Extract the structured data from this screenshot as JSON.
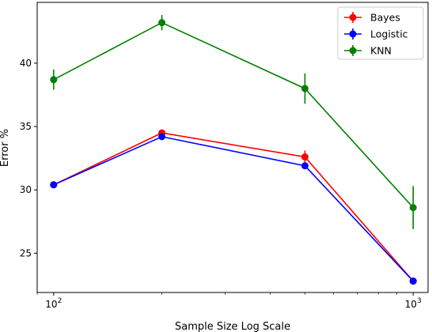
{
  "chart_data": {
    "type": "line",
    "title": "",
    "xlabel": "Sample Size Log Scale",
    "ylabel": "Error %",
    "x_scale": "log",
    "xlim": [
      90,
      1100
    ],
    "ylim": [
      21.9,
      44.8
    ],
    "x": [
      100,
      200,
      500,
      1000
    ],
    "x_ticks": [
      {
        "value": 100,
        "base": "10",
        "exp": "2"
      },
      {
        "value": 1000,
        "base": "10",
        "exp": "3"
      }
    ],
    "x_minor_ticks": [
      200,
      300,
      400,
      500,
      600,
      700,
      800,
      900
    ],
    "y_ticks": [
      25,
      30,
      35,
      40
    ],
    "y_tick_labels": [
      "25",
      "30",
      "35",
      "40"
    ],
    "grid": false,
    "legend_position": "top-right",
    "series": [
      {
        "name": "Bayes",
        "color": "#ff0000",
        "values": [
          30.4,
          34.5,
          32.6,
          22.8
        ],
        "errors": [
          0.1,
          0.2,
          0.5,
          0.1
        ]
      },
      {
        "name": "Logistic",
        "color": "#0000ff",
        "values": [
          30.4,
          34.2,
          31.9,
          22.8
        ],
        "errors": [
          0.1,
          0.1,
          0.2,
          0.1
        ]
      },
      {
        "name": "KNN",
        "color": "#008000",
        "values": [
          38.7,
          43.2,
          38.0,
          28.6
        ],
        "errors": [
          0.8,
          0.6,
          1.2,
          1.7
        ]
      }
    ]
  }
}
